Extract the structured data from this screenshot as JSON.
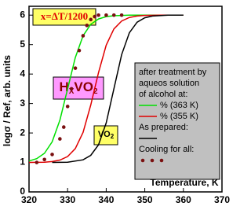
{
  "chart_data": {
    "type": "line",
    "xlabel": "Temperature, K",
    "ylabel": "logσ / Ref, arb. units",
    "xlim": [
      320,
      370
    ],
    "xticks": [
      320,
      330,
      340,
      350,
      360,
      370
    ],
    "ylim": [
      0,
      6.3
    ],
    "yticks": [
      0,
      1,
      2,
      3,
      4,
      5,
      6
    ],
    "annotation": "x=ΔT/1200",
    "compound": [
      "H",
      "X",
      "VO",
      "2"
    ],
    "base_compound": [
      "VO",
      "2"
    ],
    "legend_title": [
      "after treatment by",
      "aqueos solution",
      "of alcohol at:"
    ],
    "series": [
      {
        "name": "% (363 K)",
        "color": "#00e000",
        "style": "line",
        "x": [
          320,
          322,
          324,
          326,
          328,
          330,
          332,
          334,
          336,
          338,
          340,
          342,
          346,
          352,
          360
        ],
        "values": [
          1.05,
          1.13,
          1.31,
          1.7,
          2.44,
          3.5,
          4.56,
          5.3,
          5.69,
          5.87,
          5.95,
          5.98,
          6.0,
          6.0,
          6.0
        ]
      },
      {
        "name": "% (355 K)",
        "color": "#e00000",
        "style": "line",
        "x": [
          320,
          324,
          326,
          328,
          330,
          332,
          334,
          336,
          338,
          340,
          342,
          344,
          346,
          348,
          350,
          354,
          360
        ],
        "values": [
          1.0,
          1.01,
          1.03,
          1.08,
          1.2,
          1.47,
          2.02,
          2.95,
          4.05,
          4.98,
          5.53,
          5.8,
          5.92,
          5.97,
          5.99,
          6.0,
          6.0
        ]
      },
      {
        "name": "As prepared:",
        "color": "#000000",
        "style": "line",
        "x": [
          326,
          330,
          334,
          336,
          338,
          340,
          342,
          344,
          346,
          348,
          350,
          352,
          356,
          360
        ],
        "values": [
          1.0,
          1.01,
          1.09,
          1.24,
          1.6,
          2.34,
          3.5,
          4.66,
          5.4,
          5.76,
          5.91,
          5.97,
          6.0,
          6.0
        ]
      },
      {
        "name": "Cooling for all:",
        "color": "#7a1010",
        "style": "dots",
        "x": [
          322,
          324,
          326,
          328,
          329,
          330,
          331,
          332,
          333,
          334,
          335,
          336,
          337,
          338,
          340,
          342,
          344
        ],
        "values": [
          1.0,
          1.1,
          1.27,
          1.8,
          2.2,
          2.9,
          3.5,
          4.2,
          4.8,
          5.3,
          5.65,
          5.85,
          5.95,
          6.0,
          6.0,
          6.0,
          6.0
        ]
      }
    ]
  }
}
